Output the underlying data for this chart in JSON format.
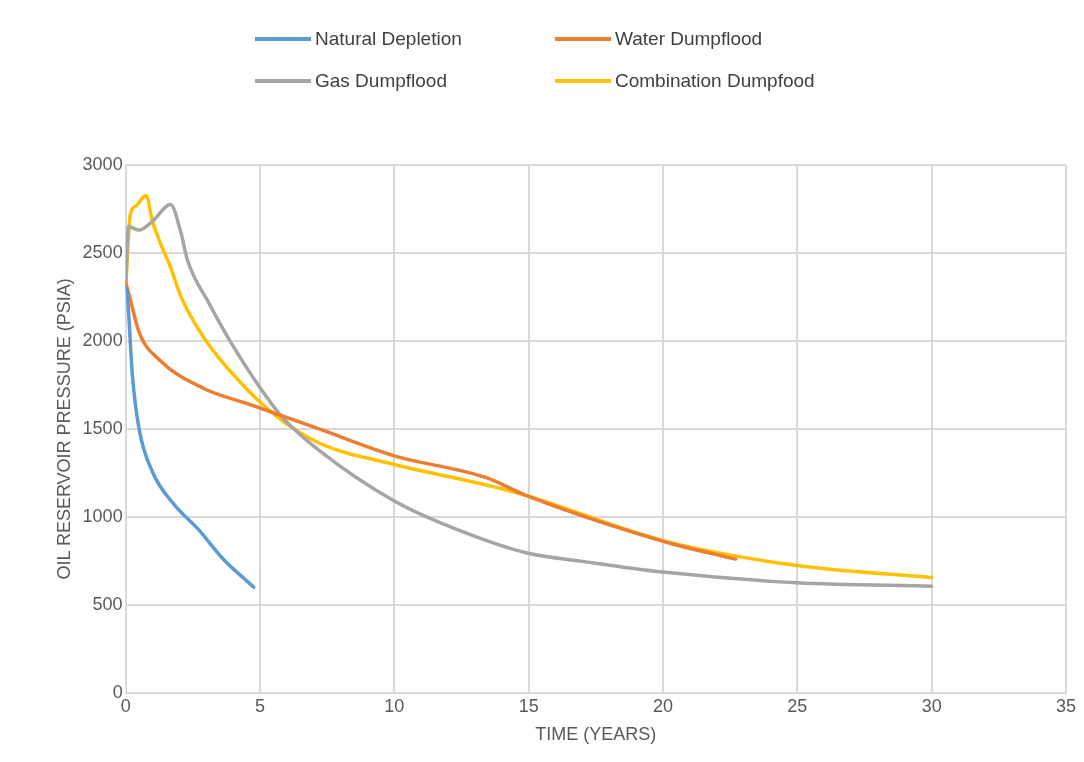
{
  "chart_data": {
    "type": "line",
    "xlabel": "TIME (YEARS)",
    "ylabel": "OIL RESERVOIR PRESSURE (PSIA)",
    "xlim": [
      0,
      35
    ],
    "xticks": [
      0,
      5,
      10,
      15,
      20,
      25,
      30,
      35
    ],
    "ylim": [
      0,
      3000
    ],
    "yticks": [
      0,
      500,
      1000,
      1500,
      2000,
      2500,
      3000
    ],
    "grid": true,
    "legend": "top",
    "marker": "none",
    "line_style": "solid",
    "series": [
      {
        "name": "Natural Depletion",
        "color": "#5b9bd5",
        "x": [
          0,
          0.05,
          0.25,
          0.5,
          1.0,
          1.8,
          2.7,
          3.6,
          4.77
        ],
        "values": [
          2300,
          2280,
          1806,
          1500,
          1255,
          1071,
          930,
          765,
          600
        ]
      },
      {
        "name": "Water Dumpflood",
        "color": "#ed7d31",
        "x": [
          0,
          0.1,
          0.5,
          1.3,
          2.95,
          4.58,
          7.2,
          10,
          13.4,
          14.9,
          20.1,
          22.7
        ],
        "values": [
          2330,
          2280,
          2050,
          1886,
          1727,
          1641,
          1500,
          1347,
          1224,
          1122,
          857,
          760
        ]
      },
      {
        "name": "Gas Dumpflood",
        "color": "#a5a5a5",
        "x": [
          0,
          0.1,
          0.5,
          1.0,
          1.67,
          2.05,
          2.3,
          3.1,
          4.0,
          5.16,
          5.87,
          7.2,
          10,
          12.3,
          14.9,
          17,
          20,
          25,
          30
        ],
        "values": [
          2300,
          2650,
          2630,
          2680,
          2775,
          2620,
          2460,
          2215,
          1970,
          1700,
          1560,
          1378,
          1090,
          930,
          796,
          747,
          686,
          625,
          606
        ]
      },
      {
        "name": "Combination Dumpfood",
        "color": "#ffc000",
        "x": [
          0,
          0.18,
          0.37,
          0.76,
          1.0,
          1.28,
          1.67,
          2.05,
          2.95,
          4.27,
          5.55,
          7.2,
          10,
          13.6,
          14.9,
          20,
          25,
          30
        ],
        "values": [
          2300,
          2725,
          2765,
          2827,
          2680,
          2560,
          2420,
          2255,
          2010,
          1765,
          1580,
          1420,
          1298,
          1175,
          1122,
          865,
          723,
          655
        ]
      }
    ]
  }
}
